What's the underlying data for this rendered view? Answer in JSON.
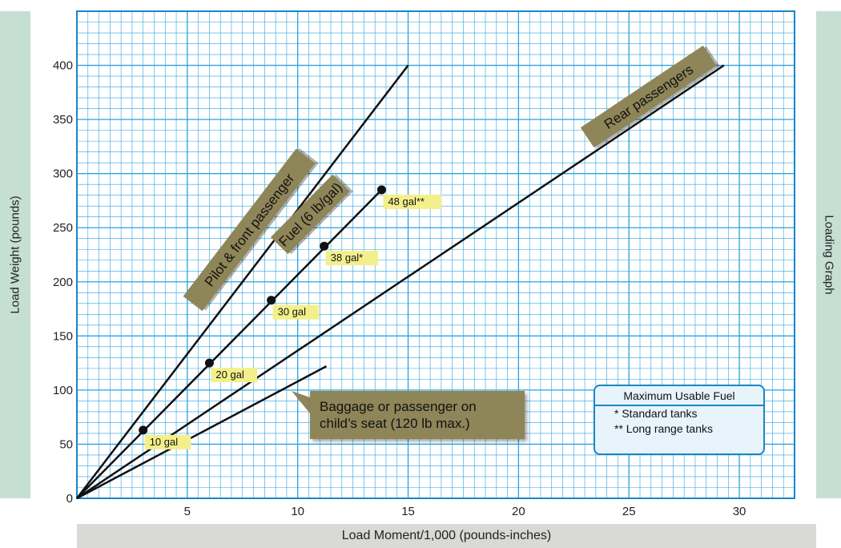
{
  "chart_data": {
    "type": "line",
    "title": "Loading Graph",
    "xlabel": "Load Moment/1,000 (pounds-inches)",
    "ylabel": "Load Weight (pounds)",
    "xlim": [
      0,
      32.5
    ],
    "ylim": [
      0,
      450
    ],
    "x_ticks": [
      5,
      10,
      15,
      20,
      25,
      30
    ],
    "y_ticks": [
      0,
      50,
      100,
      150,
      200,
      250,
      300,
      350,
      400
    ],
    "grid": true,
    "series": [
      {
        "name": "Pilot & front passenger",
        "x": [
          0,
          15.0
        ],
        "y": [
          0,
          400
        ]
      },
      {
        "name": "Fuel (6 lb/gal)",
        "x": [
          0,
          13.8
        ],
        "y": [
          0,
          285
        ]
      },
      {
        "name": "Rear passengers",
        "x": [
          0,
          29.3
        ],
        "y": [
          0,
          400
        ]
      },
      {
        "name": "Baggage or passenger on child's seat (120 lb max.)",
        "x": [
          0,
          11.3
        ],
        "y": [
          0,
          122
        ]
      }
    ],
    "fuel_points": [
      {
        "label": "10 gal",
        "x": 3.0,
        "y": 63
      },
      {
        "label": "20 gal",
        "x": 6.0,
        "y": 125
      },
      {
        "label": "30 gal",
        "x": 8.8,
        "y": 183
      },
      {
        "label": "38 gal*",
        "x": 11.2,
        "y": 233
      },
      {
        "label": "48 gal**",
        "x": 13.8,
        "y": 285
      }
    ],
    "annotations": {
      "baggage_line1": "Baggage or passenger on",
      "baggage_line2": "child’s seat (120 lb max.)",
      "fuel_box_title": "Maximum Usable Fuel",
      "fuel_box_note1": "* Standard tanks",
      "fuel_box_note2": "** Long range tanks"
    }
  },
  "colors": {
    "grid": "#2aa4dc",
    "frame": "#1a86c8",
    "line": "#111111",
    "banner": "#8e8558",
    "fuel_label": "#f3f08c",
    "side_band": "#c5dfd4",
    "bottom_band": "#d9d9d6"
  }
}
